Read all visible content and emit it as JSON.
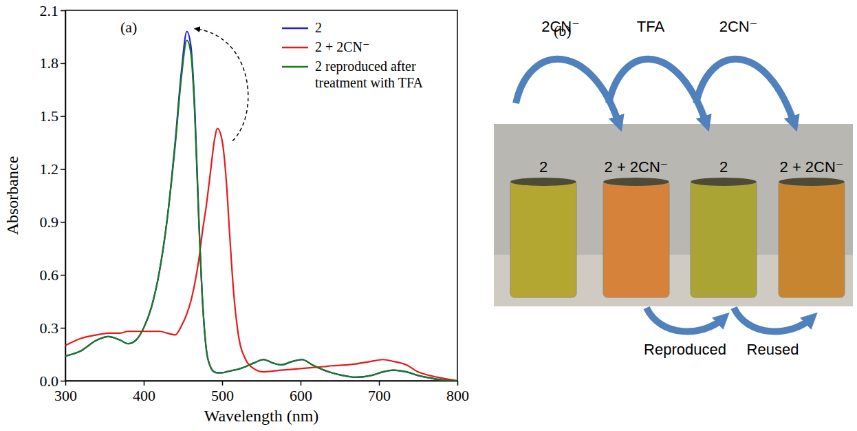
{
  "chart_data": {
    "type": "line",
    "title": "(a)",
    "x_label": "Wavelength (nm)",
    "y_label": "Absorbance",
    "x": [
      300,
      320,
      340,
      355,
      370,
      380,
      390,
      400,
      410,
      420,
      430,
      440,
      448,
      455,
      460,
      465,
      470,
      475,
      480,
      485,
      490,
      494,
      500,
      505,
      510,
      515,
      520,
      530,
      540,
      553,
      565,
      575,
      590,
      602,
      615,
      630,
      640,
      660,
      670,
      690,
      705,
      718,
      735,
      750,
      760,
      780,
      800
    ],
    "series": [
      {
        "name": "2",
        "color": "#1a1aff",
        "values": [
          0.14,
          0.17,
          0.23,
          0.25,
          0.23,
          0.21,
          0.23,
          0.3,
          0.42,
          0.62,
          0.92,
          1.35,
          1.75,
          1.98,
          1.9,
          1.55,
          0.95,
          0.45,
          0.17,
          0.08,
          0.05,
          0.045,
          0.045,
          0.05,
          0.055,
          0.06,
          0.065,
          0.08,
          0.1,
          0.12,
          0.1,
          0.09,
          0.11,
          0.12,
          0.09,
          0.06,
          0.045,
          0.025,
          0.02,
          0.03,
          0.05,
          0.06,
          0.05,
          0.03,
          0.02,
          0.005,
          0.0
        ]
      },
      {
        "name": "2 + 2CN⁻",
        "color": "#e31a1c",
        "values": [
          0.2,
          0.24,
          0.26,
          0.27,
          0.27,
          0.28,
          0.28,
          0.28,
          0.28,
          0.28,
          0.27,
          0.26,
          0.31,
          0.38,
          0.45,
          0.55,
          0.68,
          0.85,
          1.0,
          1.18,
          1.36,
          1.43,
          1.36,
          1.15,
          0.8,
          0.48,
          0.28,
          0.12,
          0.07,
          0.05,
          0.055,
          0.06,
          0.065,
          0.07,
          0.075,
          0.08,
          0.085,
          0.09,
          0.095,
          0.11,
          0.12,
          0.11,
          0.09,
          0.05,
          0.035,
          0.015,
          0.0
        ]
      },
      {
        "name": "2 reproduced after treatment with TFA",
        "color": "#1a7a1a",
        "values": [
          0.14,
          0.17,
          0.23,
          0.25,
          0.23,
          0.21,
          0.23,
          0.3,
          0.42,
          0.62,
          0.92,
          1.33,
          1.72,
          1.93,
          1.86,
          1.52,
          0.93,
          0.45,
          0.17,
          0.08,
          0.05,
          0.045,
          0.045,
          0.05,
          0.055,
          0.06,
          0.065,
          0.08,
          0.1,
          0.12,
          0.1,
          0.09,
          0.11,
          0.12,
          0.09,
          0.06,
          0.045,
          0.025,
          0.02,
          0.03,
          0.05,
          0.06,
          0.05,
          0.03,
          0.02,
          0.005,
          0.0
        ]
      }
    ],
    "xlim": [
      300,
      800
    ],
    "xticks": [
      300,
      400,
      500,
      600,
      700,
      800
    ],
    "ylim": [
      0,
      2.1
    ],
    "yticks": [
      {
        "value": 0,
        "label": "0.0"
      },
      0.3,
      0.6,
      0.9,
      1.2,
      1.5,
      1.8,
      2.1
    ],
    "legend": "top-right"
  },
  "panel_b": {
    "label": "(b)",
    "vials": [
      "2",
      "2 + 2CN⁻",
      "2",
      "2 + 2CN⁻"
    ],
    "top_arrows": [
      "2CN⁻",
      "TFA",
      "2CN⁻"
    ],
    "bottom_arrows": [
      "Reproduced",
      "Reused"
    ]
  }
}
